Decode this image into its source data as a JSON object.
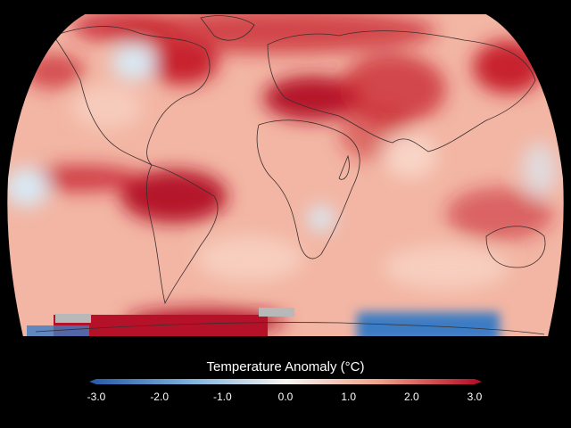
{
  "legend": {
    "title": "Temperature Anomaly (°C)",
    "min": -3.0,
    "max": 3.0,
    "ticks": [
      {
        "value": -3.0,
        "label": "-3.0"
      },
      {
        "value": -2.0,
        "label": "-2.0"
      },
      {
        "value": -1.0,
        "label": "-1.0"
      },
      {
        "value": 0.0,
        "label": "0.0"
      },
      {
        "value": 1.0,
        "label": "1.0"
      },
      {
        "value": 2.0,
        "label": "2.0"
      },
      {
        "value": 3.0,
        "label": "3.0"
      }
    ],
    "colors": {
      "cold_end": "#2a5fab",
      "cold_mid": "#7fb2dc",
      "neutral": "#f7f4f1",
      "warm_mid": "#f0a08a",
      "warm_end": "#b5122a"
    }
  },
  "map": {
    "projection": "Robinson",
    "colors": {
      "background": "#000000",
      "base_warm": "#f3b6a4",
      "hot": "#c7232e",
      "very_hot": "#b5122a",
      "mild": "#f8d4c6",
      "cool": "#d8e8f3",
      "cold": "#3b7cc4",
      "no_data": "#b8b8b8",
      "coastline": "#3a2f2f"
    }
  }
}
